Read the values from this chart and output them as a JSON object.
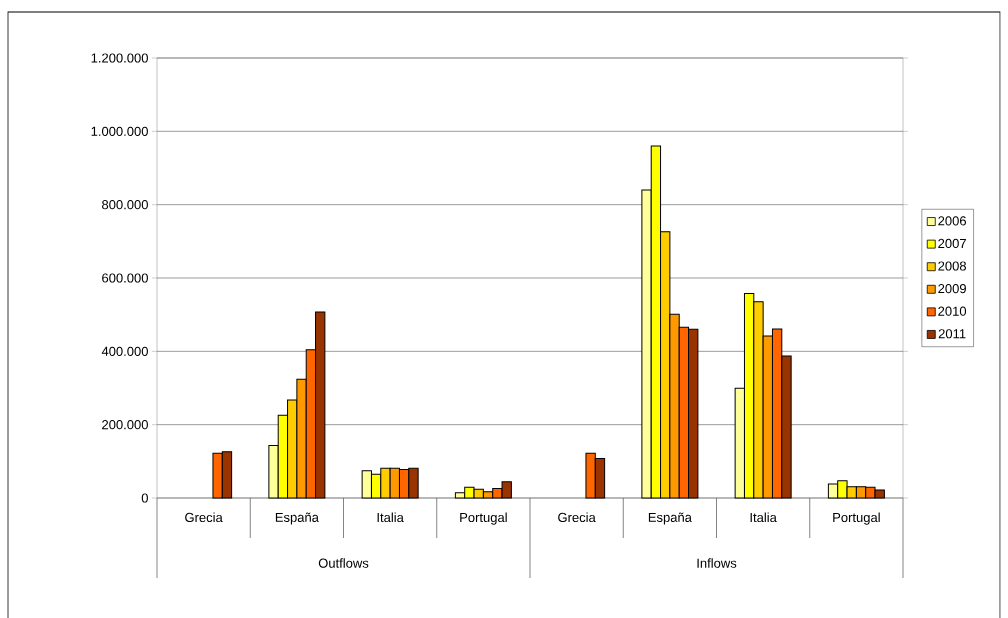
{
  "chart_data": {
    "type": "bar",
    "categories": [
      "Grecia",
      "España",
      "Italia",
      "Portugal",
      "Grecia",
      "España",
      "Italia",
      "Portugal"
    ],
    "series": [
      {
        "name": "2006",
        "color": "#ffff99",
        "values": [
          null,
          143000,
          74000,
          14000,
          null,
          840000,
          299000,
          38000
        ]
      },
      {
        "name": "2007",
        "color": "#ffff00",
        "values": [
          null,
          226000,
          65000,
          29000,
          null,
          960000,
          558000,
          47000
        ]
      },
      {
        "name": "2008",
        "color": "#ffcc00",
        "values": [
          null,
          267000,
          81000,
          24000,
          null,
          726000,
          535000,
          31000
        ]
      },
      {
        "name": "2009",
        "color": "#ff9900",
        "values": [
          null,
          324000,
          81000,
          17000,
          null,
          501000,
          442000,
          31000
        ]
      },
      {
        "name": "2010",
        "color": "#ff6600",
        "values": [
          122000,
          404000,
          78000,
          26000,
          122000,
          466000,
          461000,
          29000
        ]
      },
      {
        "name": "2011",
        "color": "#993300",
        "values": [
          126000,
          507000,
          81000,
          44000,
          108000,
          460000,
          387000,
          22000
        ]
      }
    ],
    "ylim": [
      0,
      1200000
    ],
    "yticks": [
      0,
      {
        "value": 200000,
        "label": "200.000"
      },
      {
        "value": 400000,
        "label": "400.000"
      },
      {
        "value": 600000,
        "label": "600.000"
      },
      {
        "value": 800000,
        "label": "800.000"
      },
      {
        "value": 1000000,
        "label": "1.000.000"
      },
      {
        "value": 1200000,
        "label": "1.200.000"
      }
    ],
    "grid": "y",
    "legend": "right",
    "annotations": [
      "Outflows",
      "Inflows"
    ]
  }
}
